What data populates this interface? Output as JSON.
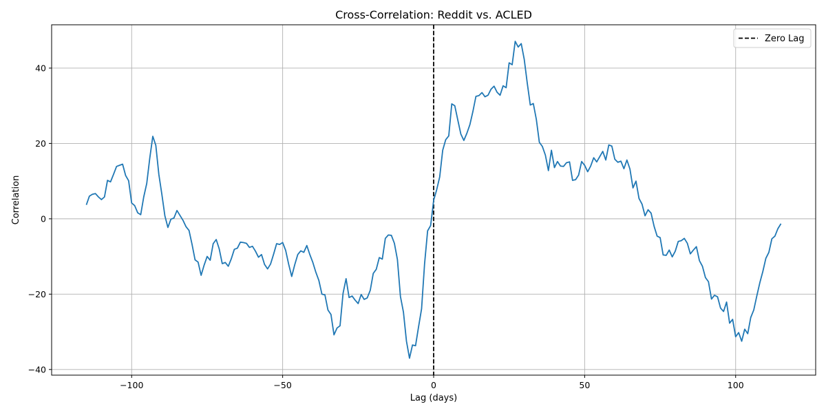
{
  "chart_data": {
    "type": "line",
    "title": "Cross-Correlation: Reddit vs. ACLED",
    "xlabel": "Lag (days)",
    "ylabel": "Correlation",
    "xlim": [
      -126.5,
      126.5
    ],
    "ylim": [
      -41.5,
      51.5
    ],
    "xticks": [
      -100,
      -50,
      0,
      50,
      100
    ],
    "xtick_labels": [
      "−100",
      "−50",
      "0",
      "50",
      "100"
    ],
    "yticks": [
      -40,
      -20,
      0,
      20,
      40
    ],
    "ytick_labels": [
      "−40",
      "−20",
      "0",
      "20",
      "40"
    ],
    "grid": true,
    "legend_position": "top-right",
    "colors": {
      "series": "#1f77b4",
      "zero_lag": "#000000",
      "grid": "#b0b0b0"
    },
    "zero_lag": {
      "x": 0,
      "label": "Zero Lag"
    },
    "series": [
      {
        "x_start": -115,
        "x_step": 1,
        "values": [
          3.7,
          6.0,
          6.5,
          6.7,
          5.8,
          5.1,
          5.8,
          10.2,
          9.8,
          11.8,
          13.9,
          14.2,
          14.5,
          11.5,
          10.1,
          4.2,
          3.5,
          1.6,
          1.1,
          5.8,
          9.4,
          16.1,
          21.9,
          19.5,
          11.8,
          6.5,
          0.8,
          -2.3,
          -0.1,
          0.2,
          2.2,
          0.9,
          -0.4,
          -2.1,
          -3.1,
          -6.8,
          -10.9,
          -11.5,
          -15.0,
          -12.3,
          -10.0,
          -11.0,
          -6.6,
          -5.5,
          -8.0,
          -11.9,
          -11.6,
          -12.6,
          -10.6,
          -8.1,
          -7.8,
          -6.2,
          -6.3,
          -6.5,
          -7.6,
          -7.3,
          -8.6,
          -10.2,
          -9.5,
          -12.1,
          -13.3,
          -12.0,
          -9.4,
          -6.6,
          -6.8,
          -6.3,
          -8.4,
          -12.1,
          -15.3,
          -12.2,
          -9.5,
          -8.5,
          -8.9,
          -7.1,
          -9.5,
          -11.6,
          -14.2,
          -16.4,
          -20.0,
          -20.2,
          -24.2,
          -25.4,
          -30.8,
          -29.0,
          -28.4,
          -19.8,
          -15.9,
          -20.9,
          -20.5,
          -21.6,
          -22.5,
          -20.1,
          -21.4,
          -21.0,
          -19.0,
          -14.5,
          -13.4,
          -10.3,
          -10.7,
          -5.2,
          -4.3,
          -4.4,
          -6.5,
          -10.8,
          -20.6,
          -24.8,
          -32.5,
          -37.0,
          -33.5,
          -33.7,
          -28.7,
          -23.9,
          -11.9,
          -3.2,
          -1.8,
          4.9,
          7.7,
          11.1,
          18.2,
          21.0,
          22.0,
          30.5,
          30.0,
          26.2,
          22.5,
          20.8,
          22.7,
          25.0,
          28.5,
          32.5,
          32.7,
          33.5,
          32.4,
          32.8,
          34.4,
          35.2,
          33.6,
          32.8,
          35.3,
          34.8,
          41.4,
          40.9,
          47.1,
          45.6,
          46.5,
          42.3,
          36.0,
          30.2,
          30.6,
          26.4,
          20.3,
          19.2,
          16.9,
          12.8,
          18.2,
          13.6,
          15.2,
          14.0,
          13.9,
          14.9,
          15.1,
          10.2,
          10.4,
          11.6,
          15.2,
          14.2,
          12.5,
          14.0,
          16.2,
          15.1,
          16.5,
          17.9,
          15.6,
          19.6,
          19.3,
          15.8,
          15.0,
          15.3,
          13.3,
          15.6,
          13.2,
          8.2,
          10.0,
          5.4,
          3.9,
          0.8,
          2.4,
          1.5,
          -2.0,
          -4.6,
          -5.0,
          -9.6,
          -9.7,
          -8.3,
          -10.1,
          -8.6,
          -6.0,
          -5.8,
          -5.2,
          -6.5,
          -9.3,
          -8.3,
          -7.4,
          -11.1,
          -12.6,
          -15.6,
          -16.7,
          -21.3,
          -20.3,
          -20.7,
          -23.7,
          -24.6,
          -22.1,
          -27.7,
          -26.7,
          -31.3,
          -30.2,
          -32.5,
          -29.3,
          -30.5,
          -26.2,
          -24.2,
          -20.5,
          -17.0,
          -14.0,
          -10.5,
          -8.9,
          -5.3,
          -4.6,
          -2.6,
          -1.3
        ]
      }
    ]
  }
}
